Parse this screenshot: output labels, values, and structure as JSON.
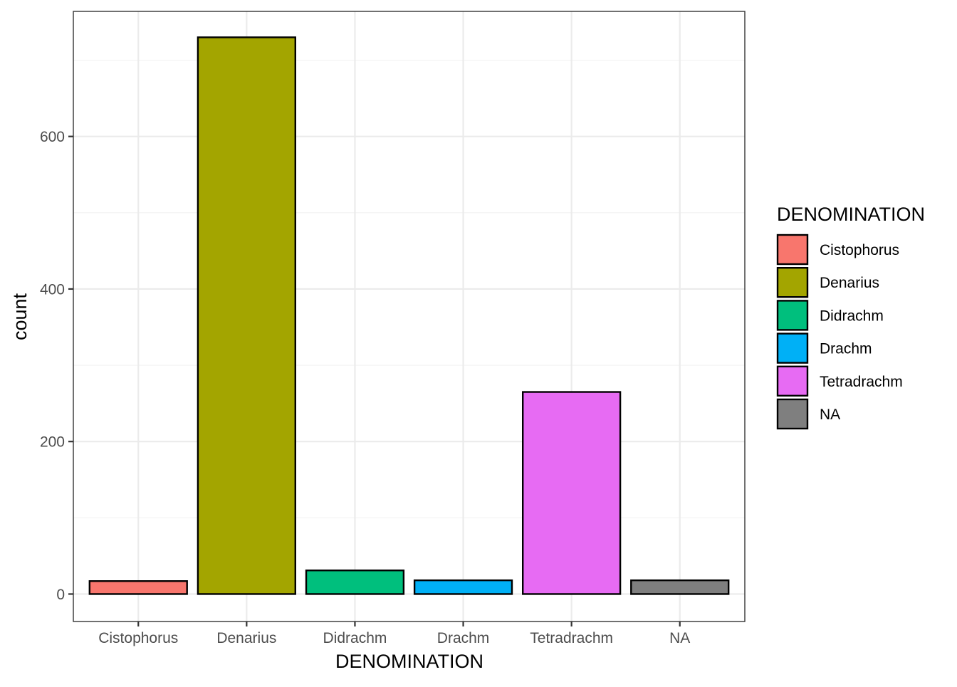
{
  "chart_data": {
    "type": "bar",
    "title": "",
    "xlabel": "DENOMINATION",
    "ylabel": "count",
    "categories": [
      "Cistophorus",
      "Denarius",
      "Didrachm",
      "Drachm",
      "Tetradrachm",
      "NA"
    ],
    "values": [
      17,
      730,
      31,
      18,
      265,
      18
    ],
    "colors": [
      "#F8766D",
      "#A3A500",
      "#00BF7D",
      "#00B0F6",
      "#E76BF3",
      "#7F7F7F"
    ],
    "ylim": [
      -36,
      764
    ],
    "yticks": [
      0,
      200,
      400,
      600
    ],
    "ytick_labels": [
      "0",
      "200",
      "400",
      "600"
    ],
    "grid": true,
    "legend": {
      "title": "DENOMINATION",
      "placement": "right",
      "entries": [
        "Cistophorus",
        "Denarius",
        "Didrachm",
        "Drachm",
        "Tetradrachm",
        "NA"
      ]
    }
  }
}
